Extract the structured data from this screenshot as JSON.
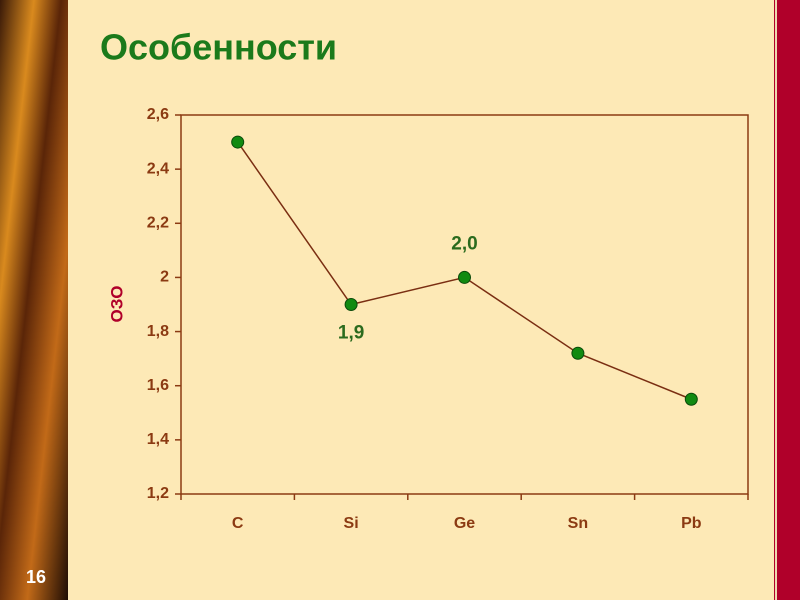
{
  "slide_number": "16",
  "chart_data": {
    "type": "line",
    "title": "Особенности",
    "y_label": "ОЗО",
    "categories": [
      "C",
      "Si",
      "Ge",
      "Sn",
      "Pb"
    ],
    "values": [
      2.5,
      1.9,
      2.0,
      1.72,
      1.55
    ],
    "value_labels": [
      null,
      "1,9",
      "2,0",
      null,
      null
    ],
    "color": "#7a2e12",
    "marker_color": "#118a11",
    "ylim": [
      1.2,
      2.6
    ],
    "yticks": [
      {
        "value": 1.2,
        "label": "1,2"
      },
      {
        "value": 1.4,
        "label": "1,4"
      },
      {
        "value": 1.6,
        "label": "1,6"
      },
      {
        "value": 1.8,
        "label": "1,8"
      },
      2,
      {
        "value": 2.2,
        "label": "2,2"
      },
      {
        "value": 2.4,
        "label": "2,4"
      },
      {
        "value": 2.6,
        "label": "2,6"
      }
    ],
    "grid": false
  }
}
